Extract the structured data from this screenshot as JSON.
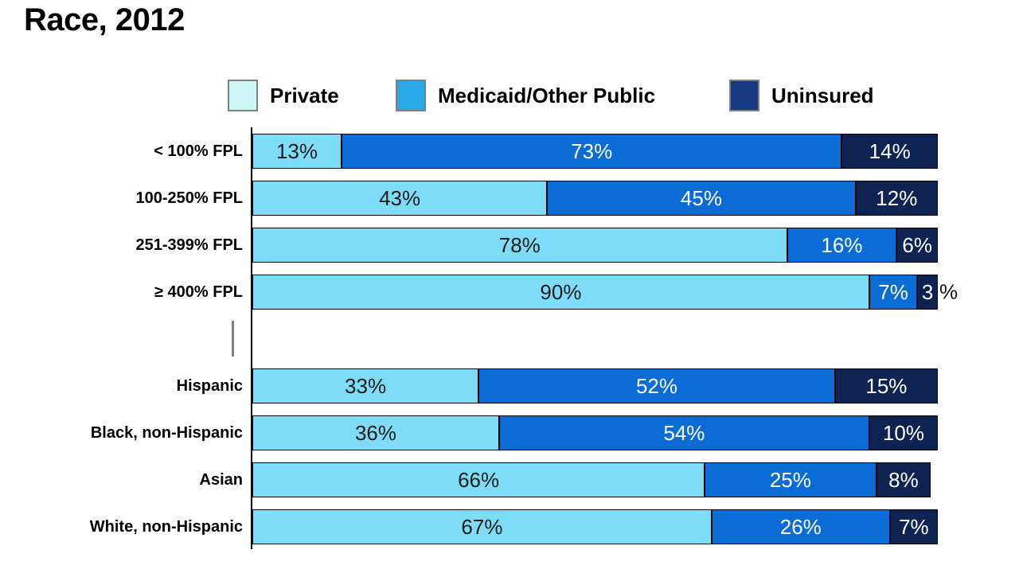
{
  "title": "Race, 2012",
  "legend": {
    "items": [
      {
        "label": "Private",
        "color": "#CDF6F6"
      },
      {
        "label": "Medicaid/Other Public",
        "color": "#29A9E8"
      },
      {
        "label": "Uninsured",
        "color": "#16387F"
      }
    ]
  },
  "chart_data": {
    "type": "bar",
    "orientation": "horizontal",
    "stacked": true,
    "value_unit": "%",
    "xlim": [
      0,
      100
    ],
    "legend_position": "top",
    "series": [
      {
        "name": "Private",
        "fill": "#7FDCF8"
      },
      {
        "name": "Medicaid/Other Public",
        "fill": "#0B6CD5"
      },
      {
        "name": "Uninsured",
        "fill": "#0E2351"
      }
    ],
    "groups": [
      {
        "rows": [
          {
            "category": "< 100% FPL",
            "values": [
              13,
              73,
              14
            ]
          },
          {
            "category": "100-250% FPL",
            "values": [
              43,
              45,
              12
            ]
          },
          {
            "category": "251-399% FPL",
            "values": [
              78,
              16,
              6
            ]
          },
          {
            "category": "≥ 400% FPL",
            "values": [
              90,
              7,
              3
            ]
          }
        ]
      },
      {
        "rows": [
          {
            "category": "Hispanic",
            "values": [
              33,
              52,
              15
            ]
          },
          {
            "category": "Black, non-Hispanic",
            "values": [
              36,
              54,
              10
            ]
          },
          {
            "category": "Asian",
            "values": [
              66,
              25,
              8
            ]
          },
          {
            "category": "White, non-Hispanic",
            "values": [
              67,
              26,
              7
            ]
          }
        ]
      }
    ]
  }
}
